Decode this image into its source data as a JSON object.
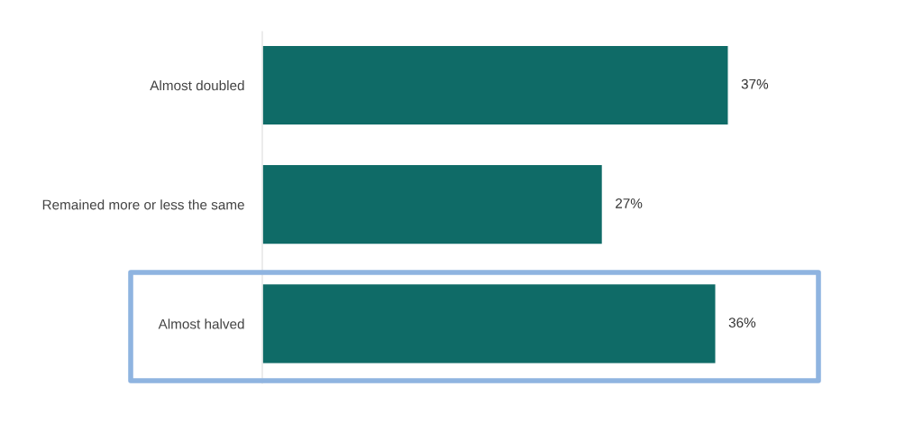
{
  "chart_data": {
    "type": "bar",
    "orientation": "horizontal",
    "categories": [
      "Almost doubled",
      "Remained more or less the same",
      "Almost halved"
    ],
    "values": [
      37,
      27,
      36
    ],
    "color": "#0f6b67",
    "value_labels": [
      "37%",
      "27%",
      "36%"
    ],
    "grid": false,
    "legend": false
  }
}
